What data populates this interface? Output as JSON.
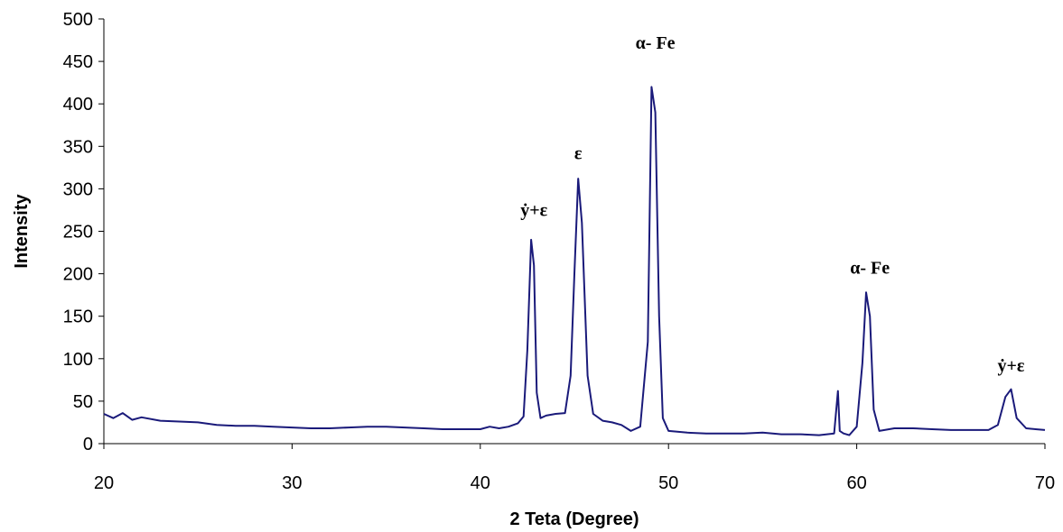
{
  "chart_data": {
    "type": "line",
    "title": "",
    "xlabel": "2 Teta (Degree)",
    "ylabel": "Intensity",
    "xlim": [
      20,
      70
    ],
    "ylim": [
      0,
      500
    ],
    "x_ticks": [
      20,
      30,
      40,
      50,
      60,
      70
    ],
    "y_ticks": [
      0,
      50,
      100,
      150,
      200,
      250,
      300,
      350,
      400,
      450,
      500
    ],
    "grid": false,
    "legend": "none",
    "line_color": "#1a1a7a",
    "series": [
      {
        "x": [
          20,
          20.5,
          21,
          21.5,
          22,
          23,
          24,
          25,
          26,
          27,
          28,
          29,
          30,
          31,
          32,
          33,
          34,
          35,
          36,
          37,
          38,
          39,
          40,
          40.5,
          41,
          41.5,
          42,
          42.3,
          42.5,
          42.7,
          42.85,
          43,
          43.2,
          43.5,
          44,
          44.5,
          44.8,
          45,
          45.2,
          45.4,
          45.7,
          46,
          46.5,
          47,
          47.5,
          48,
          48.5,
          48.9,
          49.1,
          49.3,
          49.5,
          49.7,
          50,
          51,
          52,
          53,
          54,
          55,
          56,
          57,
          58,
          58.8,
          59,
          59.1,
          59.3,
          59.6,
          60,
          60.3,
          60.5,
          60.7,
          60.9,
          61.2,
          62,
          63,
          64,
          65,
          66,
          67,
          67.5,
          67.9,
          68.2,
          68.5,
          69,
          69.5,
          70
        ],
        "y": [
          35,
          30,
          36,
          28,
          31,
          27,
          26,
          25,
          22,
          21,
          21,
          20,
          19,
          18,
          18,
          19,
          20,
          20,
          19,
          18,
          17,
          17,
          17,
          20,
          18,
          20,
          24,
          32,
          110,
          240,
          210,
          60,
          30,
          33,
          35,
          36,
          80,
          200,
          312,
          260,
          80,
          35,
          27,
          25,
          22,
          15,
          20,
          120,
          420,
          390,
          150,
          30,
          15,
          13,
          12,
          12,
          12,
          13,
          11,
          11,
          10,
          12,
          62,
          15,
          12,
          10,
          20,
          95,
          178,
          150,
          40,
          15,
          18,
          18,
          17,
          16,
          16,
          16,
          22,
          55,
          64,
          30,
          18,
          17,
          16
        ]
      }
    ],
    "annotations": [
      {
        "text": "ẏ+ε",
        "x": 42.85,
        "y": 268
      },
      {
        "text": "ε",
        "x": 45.2,
        "y": 335
      },
      {
        "text": "α- Fe",
        "x": 49.3,
        "y": 465
      },
      {
        "text": "α- Fe",
        "x": 60.7,
        "y": 200
      },
      {
        "text": "ẏ+ε",
        "x": 68.2,
        "y": 85
      }
    ]
  }
}
